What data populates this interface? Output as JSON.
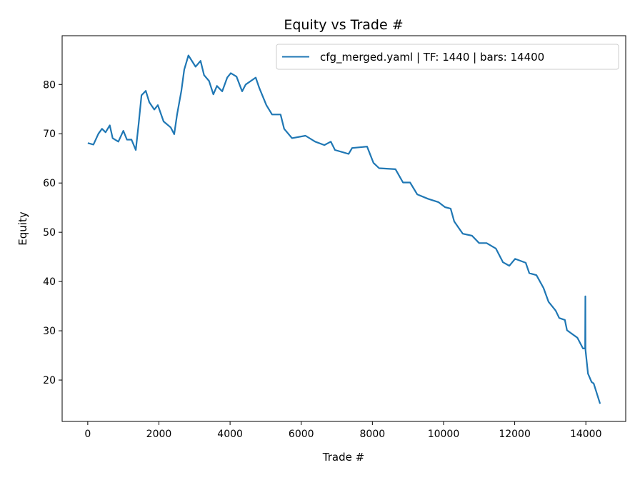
{
  "chart_data": {
    "type": "line",
    "title": "Equity vs Trade #",
    "xlabel": "Trade #",
    "ylabel": "Equity",
    "xlim": [
      -720,
      15120
    ],
    "ylim": [
      11.6,
      89.9
    ],
    "xticks": [
      0,
      2000,
      4000,
      6000,
      8000,
      10000,
      12000,
      14000
    ],
    "yticks": [
      20,
      30,
      40,
      50,
      60,
      70,
      80
    ],
    "grid": false,
    "legend_position": "top-right",
    "series": [
      {
        "name": "cfg_merged.yaml | TF: 1440 | bars: 14400",
        "color": "#1f77b4",
        "x": [
          0,
          160,
          300,
          400,
          500,
          620,
          700,
          860,
          1000,
          1100,
          1230,
          1350,
          1430,
          1510,
          1630,
          1730,
          1870,
          1970,
          2130,
          2330,
          2430,
          2510,
          2630,
          2710,
          2830,
          3030,
          3170,
          3270,
          3410,
          3530,
          3630,
          3780,
          3920,
          4020,
          4180,
          4340,
          4440,
          4720,
          4820,
          5020,
          5180,
          5420,
          5520,
          5740,
          6120,
          6390,
          6650,
          6830,
          6950,
          7190,
          7330,
          7430,
          7850,
          8030,
          8190,
          8650,
          8860,
          9060,
          9260,
          9560,
          9860,
          10040,
          10200,
          10300,
          10540,
          10800,
          11000,
          11210,
          11470,
          11670,
          11850,
          12010,
          12310,
          12410,
          12610,
          12810,
          12950,
          13150,
          13250,
          13410,
          13470,
          13760,
          13920,
          13980,
          13985,
          13990,
          14060,
          14160,
          14220,
          14400
        ],
        "y": [
          68.1,
          67.8,
          70.0,
          71.0,
          70.3,
          71.7,
          69.1,
          68.4,
          70.6,
          68.8,
          68.8,
          66.7,
          72.0,
          77.8,
          78.7,
          76.4,
          74.9,
          75.8,
          72.5,
          71.3,
          69.9,
          73.9,
          78.7,
          83.0,
          85.9,
          83.6,
          84.8,
          81.9,
          80.7,
          78.0,
          79.7,
          78.6,
          81.4,
          82.3,
          81.6,
          78.6,
          80.0,
          81.4,
          79.3,
          75.8,
          73.9,
          73.9,
          71.0,
          69.1,
          69.6,
          68.4,
          67.7,
          68.4,
          66.7,
          66.2,
          65.9,
          67.1,
          67.4,
          64.1,
          63.0,
          62.8,
          60.1,
          60.1,
          57.7,
          56.8,
          56.1,
          55.1,
          54.8,
          52.2,
          49.7,
          49.3,
          47.8,
          47.8,
          46.7,
          43.9,
          43.2,
          44.6,
          43.8,
          41.7,
          41.3,
          38.7,
          35.9,
          34.1,
          32.6,
          32.2,
          30.1,
          28.6,
          26.4,
          26.4,
          37.0,
          26.1,
          21.3,
          19.6,
          19.3,
          15.2
        ]
      }
    ]
  }
}
